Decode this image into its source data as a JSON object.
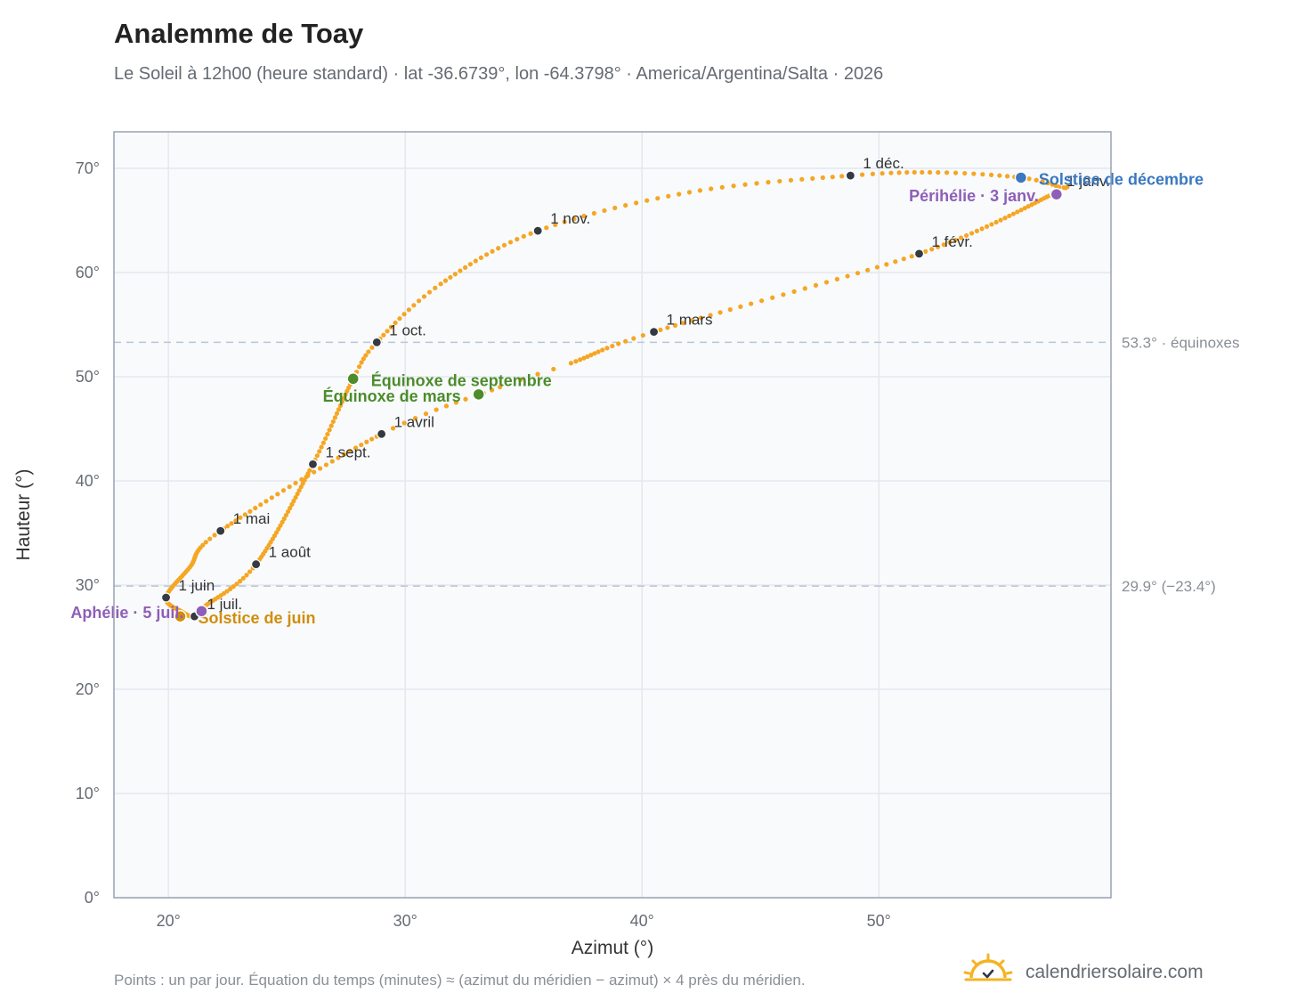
{
  "header": {
    "title": "Analemme de Toay",
    "subtitle": "Le Soleil à 12h00 (heure standard) · lat -36.6739°, lon -64.3798° · America/Argentina/Salta · 2026"
  },
  "footer": {
    "note": "Points : un par jour. Équation du temps (minutes) ≈ (azimut du méridien − azimut) × 4 près du méridien.",
    "brand": "calendriersolaire.com"
  },
  "colors": {
    "curve": "#f5a623",
    "month_dot": "#333a42",
    "equinox": "#4c8c2b",
    "solstice_june": "#d18e0c",
    "solstice_december": "#3a78c0",
    "apsis": "#8e5fb7",
    "plot_bg": "#f8fafc",
    "grid": "#e4e8ee",
    "reference_line": "#b9c6d6"
  },
  "chart_data": {
    "type": "scatter",
    "title": "Analemme de Toay",
    "xlabel": "Azimut (°)",
    "ylabel": "Hauteur (°)",
    "xlim": [
      17.7,
      59.8
    ],
    "ylim": [
      0,
      73.5
    ],
    "x_ticks": [
      20,
      30,
      40,
      50
    ],
    "x_tick_labels": [
      "20°",
      "30°",
      "40°",
      "50°"
    ],
    "y_ticks": [
      0,
      10,
      20,
      30,
      40,
      50,
      60,
      70
    ],
    "y_tick_labels": [
      "0°",
      "10°",
      "20°",
      "30°",
      "40°",
      "50°",
      "60°",
      "70°"
    ],
    "grid": true,
    "reference_lines": [
      {
        "y": 53.3,
        "label": "53.3° · équinoxes"
      },
      {
        "y": 29.9,
        "label": "29.9° (−23.4°)"
      }
    ],
    "month_points": [
      {
        "label": "1 janv.",
        "x": 57.4,
        "y": 67.6,
        "doy": 1
      },
      {
        "label": "1 févr.",
        "x": 51.7,
        "y": 61.8,
        "doy": 32
      },
      {
        "label": "1 mars",
        "x": 40.5,
        "y": 54.3,
        "doy": 60
      },
      {
        "label": "1 avril",
        "x": 29.0,
        "y": 44.5,
        "doy": 91
      },
      {
        "label": "1 mai",
        "x": 22.2,
        "y": 35.2,
        "doy": 121
      },
      {
        "label": "1 juin",
        "x": 19.9,
        "y": 28.8,
        "doy": 152
      },
      {
        "label": "1 juil.",
        "x": 21.1,
        "y": 27.0,
        "doy": 182
      },
      {
        "label": "1 août",
        "x": 23.7,
        "y": 32.0,
        "doy": 213
      },
      {
        "label": "1 sept.",
        "x": 26.1,
        "y": 41.6,
        "doy": 244
      },
      {
        "label": "1 oct.",
        "x": 28.8,
        "y": 53.3,
        "doy": 274
      },
      {
        "label": "1 nov.",
        "x": 35.6,
        "y": 64.0,
        "doy": 305
      },
      {
        "label": "1 déc.",
        "x": 48.8,
        "y": 69.3,
        "doy": 335
      }
    ],
    "extra_knots": [
      {
        "x": 37.0,
        "y": 51.3,
        "doy": 75
      },
      {
        "x": 34.0,
        "y": 49.0,
        "doy": 79
      },
      {
        "x": 20.9,
        "y": 31.7,
        "doy": 136
      },
      {
        "x": 20.6,
        "y": 27.4,
        "doy": 167
      },
      {
        "x": 21.5,
        "y": 27.9,
        "doy": 195
      },
      {
        "x": 27.8,
        "y": 49.8,
        "doy": 266
      },
      {
        "x": 31.5,
        "y": 58.9,
        "doy": 288
      },
      {
        "x": 42.0,
        "y": 67.7,
        "doy": 320
      },
      {
        "x": 52.5,
        "y": 69.6,
        "doy": 345
      },
      {
        "x": 56.0,
        "y": 69.1,
        "doy": 355
      },
      {
        "x": 57.6,
        "y": 68.2,
        "doy": 362
      }
    ],
    "events": [
      {
        "label": "Équinoxe de mars",
        "x": 33.1,
        "y": 48.3,
        "color": "#4c8c2b",
        "anchor": "end",
        "dx": -20,
        "dy": 8
      },
      {
        "label": "Équinoxe de septembre",
        "x": 27.8,
        "y": 49.8,
        "color": "#4c8c2b",
        "anchor": "start",
        "dx": 20,
        "dy": 8
      },
      {
        "label": "Solstice de juin",
        "x": 20.5,
        "y": 27.0,
        "color": "#d18e0c",
        "anchor": "start",
        "dx": 20,
        "dy": 8
      },
      {
        "label": "Solstice de décembre",
        "x": 56.0,
        "y": 69.1,
        "color": "#3a78c0",
        "anchor": "start",
        "dx": 20,
        "dy": 8
      },
      {
        "label": "Aphélie · 5 juil.",
        "x": 21.4,
        "y": 27.5,
        "color": "#8e5fb7",
        "anchor": "end",
        "dx": -20,
        "dy": 8
      },
      {
        "label": "Périhélie · 3 janv.",
        "x": 57.5,
        "y": 67.5,
        "color": "#8e5fb7",
        "anchor": "end",
        "dx": -20,
        "dy": 8
      }
    ]
  }
}
